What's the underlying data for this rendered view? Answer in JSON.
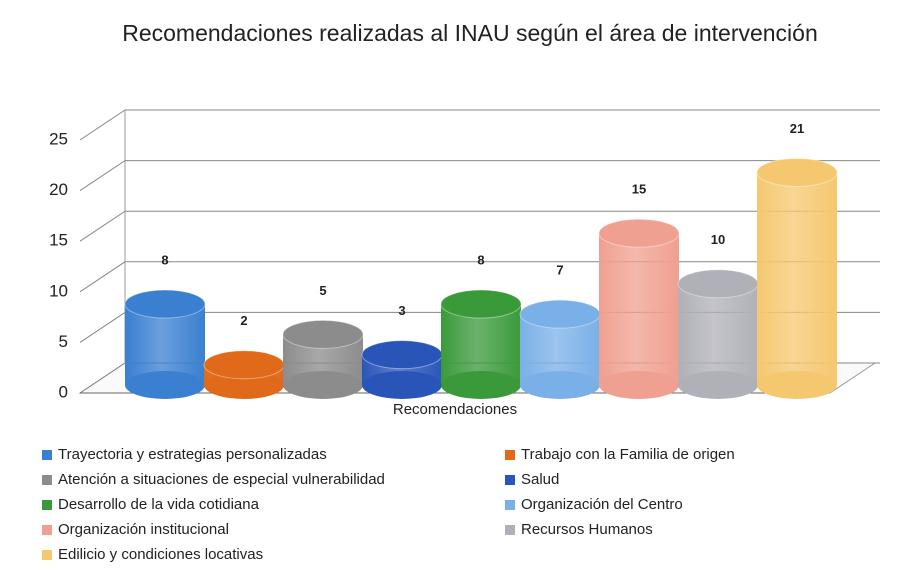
{
  "chart_data": {
    "type": "bar",
    "title": "Recomendaciones realizadas al INAU según el área de intervención",
    "categories": [
      "Recomendaciones"
    ],
    "series": [
      {
        "name": "Trayectoria y estrategias personalizadas",
        "color": "#3a7fd0",
        "values": [
          8
        ]
      },
      {
        "name": "Trabajo con la  Familia de origen",
        "color": "#e06a1a",
        "values": [
          2
        ]
      },
      {
        "name": "Atención a situaciones de especial vulnerabilidad",
        "color": "#8c8c8c",
        "values": [
          5
        ]
      },
      {
        "name": "Salud",
        "color": "#2a55b8",
        "values": [
          3
        ]
      },
      {
        "name": "Desarrollo de la vida cotidiana",
        "color": "#3a9a3a",
        "values": [
          8
        ]
      },
      {
        "name": "Organización del Centro",
        "color": "#7ab0e8",
        "values": [
          7
        ]
      },
      {
        "name": "Organización institucional",
        "color": "#f0a090",
        "values": [
          15
        ]
      },
      {
        "name": "Recursos Humanos",
        "color": "#b0b0b8",
        "values": [
          10
        ]
      },
      {
        "name": "Edilicio y condiciones locativas",
        "color": "#f5c870",
        "values": [
          21
        ]
      }
    ],
    "ylim": [
      0,
      25
    ],
    "yticks": [
      0,
      5,
      10,
      15,
      20,
      25
    ],
    "grid": true
  }
}
